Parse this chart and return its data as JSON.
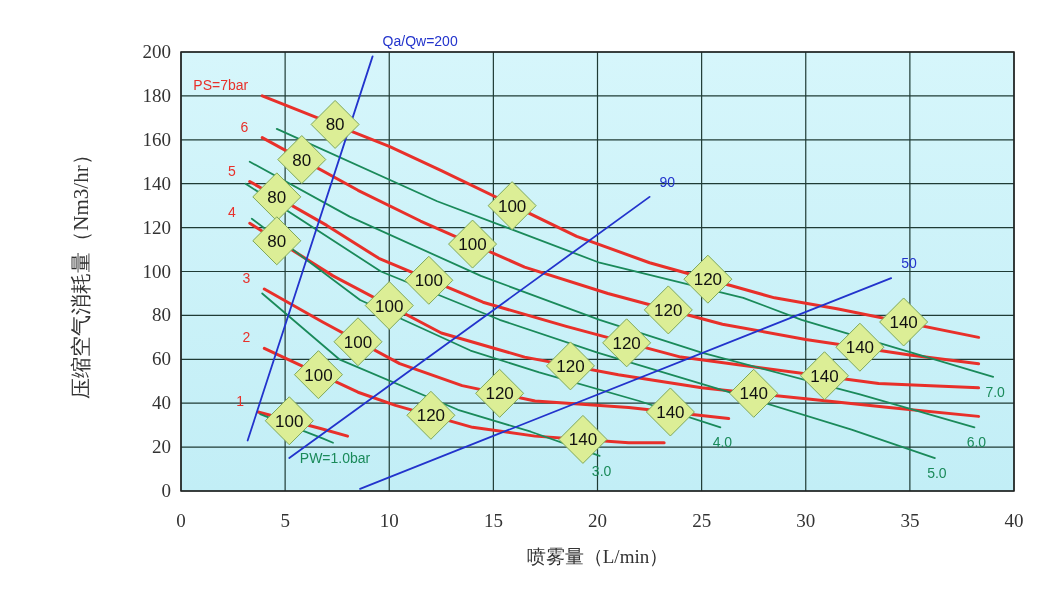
{
  "chart_data": {
    "type": "line",
    "xlabel": "喷雾量（L/min）",
    "ylabel": "压缩空气消耗量（Nm3/hr）",
    "xlim": [
      0,
      40
    ],
    "xticks": [
      0,
      5,
      10,
      15,
      20,
      25,
      30,
      35,
      40
    ],
    "ylim": [
      0,
      200
    ],
    "yticks": [
      0,
      20,
      40,
      60,
      80,
      100,
      120,
      140,
      160,
      180,
      200
    ],
    "grid": true,
    "series": [
      {
        "name": "PS=7bar",
        "color": "#e8302a",
        "x": [
          3.9,
          10,
          12.5,
          19,
          22.5,
          28.5,
          31.5,
          38.3
        ],
        "values": [
          180,
          157,
          146,
          116,
          104,
          88,
          83,
          70
        ]
      },
      {
        "name": "6",
        "color": "#e8302a",
        "x": [
          3.9,
          8.5,
          11.5,
          16.5,
          20.5,
          26,
          30,
          35,
          38.3
        ],
        "values": [
          161,
          137,
          123,
          102,
          90,
          76,
          69,
          62,
          58
        ]
      },
      {
        "name": "5",
        "color": "#e8302a",
        "x": [
          3.3,
          7,
          9.5,
          14.5,
          18.5,
          24,
          33.5,
          36,
          38.3
        ],
        "values": [
          141,
          121,
          106,
          86,
          75,
          61,
          49,
          48,
          47
        ]
      },
      {
        "name": "4",
        "color": "#e8302a",
        "x": [
          3.3,
          7.3,
          12.5,
          16.5,
          21,
          25,
          30,
          34,
          38.3
        ],
        "values": [
          122,
          98,
          72,
          61,
          53,
          47,
          42,
          38,
          34
        ]
      },
      {
        "name": "3",
        "color": "#e8302a",
        "x": [
          4.0,
          6.8,
          10.5,
          13.5,
          17,
          21.5,
          26.3
        ],
        "values": [
          92,
          77,
          58,
          48,
          41,
          38,
          33
        ]
      },
      {
        "name": "2",
        "color": "#e8302a",
        "x": [
          4.0,
          8.5,
          10.3,
          14,
          17,
          21.5,
          23.2
        ],
        "values": [
          65,
          45,
          39,
          29,
          25,
          22,
          22
        ]
      },
      {
        "name": "1",
        "color": "#e8302a",
        "x": [
          3.7,
          6.7,
          8.0
        ],
        "values": [
          36,
          28.5,
          25
        ]
      },
      {
        "name": "PW=1.0bar",
        "color": "#1a8a5a",
        "x": [
          3.8,
          6.8,
          7.3
        ],
        "values": [
          35,
          24,
          22
        ]
      },
      {
        "name": "3.0",
        "color": "#1a8a5a",
        "x": [
          3.9,
          7.6,
          13.3,
          16.8,
          20.1
        ],
        "values": [
          90,
          60,
          37,
          27,
          16
        ]
      },
      {
        "name": "4.0",
        "color": "#1a8a5a",
        "x": [
          3.4,
          8.6,
          13.9,
          17.2,
          22,
          25.9
        ],
        "values": [
          124,
          87,
          64,
          54,
          41,
          29
        ]
      },
      {
        "name": "5.0",
        "color": "#1a8a5a",
        "x": [
          3.1,
          9.6,
          15.3,
          20,
          26,
          32.2,
          36.2
        ],
        "values": [
          140,
          100,
          78,
          63,
          46,
          28,
          15
        ]
      },
      {
        "name": "6.0",
        "color": "#1a8a5a",
        "x": [
          3.3,
          8.1,
          14.4,
          20.1,
          25,
          32.6,
          38.1
        ],
        "values": [
          150,
          125,
          98,
          78,
          63,
          44,
          29
        ]
      },
      {
        "name": "7.0",
        "color": "#1a8a5a",
        "x": [
          4.6,
          12.3,
          20.1,
          27,
          29.8,
          39
        ],
        "values": [
          165,
          132,
          104,
          88,
          78,
          52
        ]
      },
      {
        "name": "Qa/Qw=200",
        "color": "#2233cc",
        "x": [
          3.2,
          9.2
        ],
        "values": [
          23,
          198
        ]
      },
      {
        "name": "90",
        "color": "#2233cc",
        "x": [
          5.2,
          22.5
        ],
        "values": [
          15,
          134
        ]
      },
      {
        "name": "50",
        "color": "#2233cc",
        "x": [
          8.6,
          34.1
        ],
        "values": [
          1,
          97
        ]
      }
    ],
    "annotations": [
      {
        "text": "80",
        "x": 7.4,
        "y": 167
      },
      {
        "text": "80",
        "x": 5.8,
        "y": 151
      },
      {
        "text": "80",
        "x": 4.6,
        "y": 134
      },
      {
        "text": "80",
        "x": 4.6,
        "y": 114
      },
      {
        "text": "100",
        "x": 15.9,
        "y": 130
      },
      {
        "text": "100",
        "x": 14.0,
        "y": 112.5
      },
      {
        "text": "100",
        "x": 11.9,
        "y": 96
      },
      {
        "text": "100",
        "x": 10.0,
        "y": 84.5
      },
      {
        "text": "100",
        "x": 8.5,
        "y": 68
      },
      {
        "text": "100",
        "x": 6.6,
        "y": 53
      },
      {
        "text": "100",
        "x": 5.2,
        "y": 32
      },
      {
        "text": "120",
        "x": 25.3,
        "y": 96.5
      },
      {
        "text": "120",
        "x": 23.4,
        "y": 82.5
      },
      {
        "text": "120",
        "x": 21.4,
        "y": 67.5
      },
      {
        "text": "120",
        "x": 18.7,
        "y": 57
      },
      {
        "text": "120",
        "x": 15.3,
        "y": 44.5
      },
      {
        "text": "120",
        "x": 12.0,
        "y": 34.5
      },
      {
        "text": "140",
        "x": 34.7,
        "y": 77
      },
      {
        "text": "140",
        "x": 32.6,
        "y": 65.5
      },
      {
        "text": "140",
        "x": 30.9,
        "y": 52.5
      },
      {
        "text": "140",
        "x": 27.5,
        "y": 44.5
      },
      {
        "text": "140",
        "x": 23.5,
        "y": 36
      },
      {
        "text": "140",
        "x": 19.3,
        "y": 23.5
      }
    ]
  }
}
